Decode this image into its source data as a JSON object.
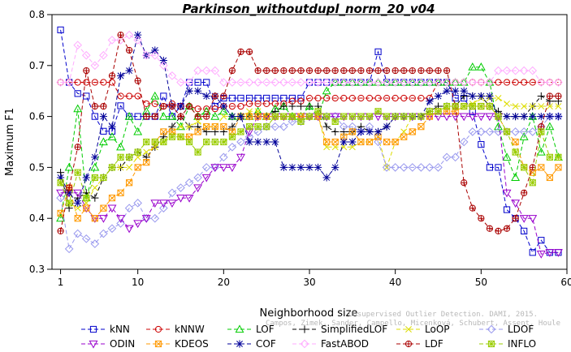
{
  "chart_data": {
    "type": "line",
    "title": "Parkinson_withoutdupl_norm_20_v04",
    "xlabel": "Neighborhood size",
    "ylabel": "Maximum F1",
    "xlim": [
      0,
      60
    ],
    "ylim": [
      0.3,
      0.8
    ],
    "xticks": [
      1,
      10,
      20,
      30,
      40,
      50,
      60
    ],
    "yticks": [
      0.3,
      0.4,
      0.5,
      0.6,
      0.7,
      0.8
    ],
    "grid": false,
    "legend_position": "bottom",
    "watermark": [
      "Unsupervised Outlier Detection. DAMI, 2015.",
      "Campos, Zimek, Sander, Campello, Micenková, Schubert, Assent, Houle"
    ],
    "x": [
      1,
      2,
      3,
      4,
      5,
      6,
      7,
      8,
      9,
      10,
      11,
      12,
      13,
      14,
      15,
      16,
      17,
      18,
      19,
      20,
      21,
      22,
      23,
      24,
      25,
      26,
      27,
      28,
      29,
      30,
      31,
      32,
      33,
      34,
      35,
      36,
      37,
      38,
      39,
      40,
      41,
      42,
      43,
      44,
      45,
      46,
      47,
      48,
      49,
      50,
      51,
      52,
      53,
      54,
      55,
      56,
      57,
      58,
      59
    ],
    "series": [
      {
        "name": "kNN",
        "color": "#0000cc",
        "marker": "square",
        "values": [
          0.77,
          0.667,
          0.645,
          0.64,
          0.6,
          0.571,
          0.571,
          0.621,
          0.6,
          0.6,
          0.6,
          0.6,
          0.64,
          0.6,
          0.62,
          0.667,
          0.667,
          0.667,
          0.62,
          0.636,
          0.636,
          0.636,
          0.636,
          0.636,
          0.636,
          0.636,
          0.636,
          0.636,
          0.636,
          0.667,
          0.667,
          0.667,
          0.667,
          0.667,
          0.667,
          0.667,
          0.667,
          0.727,
          0.667,
          0.667,
          0.667,
          0.667,
          0.667,
          0.667,
          0.667,
          0.667,
          0.636,
          0.636,
          0.609,
          0.545,
          0.5,
          0.5,
          0.417,
          0.4,
          0.375,
          0.333,
          0.357,
          0.333,
          0.333
        ]
      },
      {
        "name": "kNNW",
        "color": "#cc0000",
        "marker": "circle",
        "values": [
          0.667,
          0.667,
          0.667,
          0.667,
          0.667,
          0.667,
          0.667,
          0.64,
          0.64,
          0.64,
          0.625,
          0.625,
          0.62,
          0.625,
          0.62,
          0.62,
          0.615,
          0.615,
          0.615,
          0.62,
          0.62,
          0.62,
          0.625,
          0.625,
          0.625,
          0.625,
          0.625,
          0.63,
          0.63,
          0.636,
          0.636,
          0.636,
          0.636,
          0.636,
          0.636,
          0.636,
          0.636,
          0.636,
          0.636,
          0.636,
          0.636,
          0.636,
          0.636,
          0.636,
          0.667,
          0.667,
          0.667,
          0.667,
          0.667,
          0.667,
          0.667,
          0.667,
          0.667,
          0.667,
          0.667,
          0.667,
          0.667,
          0.667,
          0.667
        ]
      },
      {
        "name": "LOF",
        "color": "#00cc00",
        "marker": "triangle-up",
        "values": [
          0.4,
          0.5,
          0.615,
          0.44,
          0.5,
          0.55,
          0.56,
          0.54,
          0.6,
          0.57,
          0.61,
          0.64,
          0.6,
          0.6,
          0.58,
          0.62,
          0.6,
          0.61,
          0.6,
          0.61,
          0.6,
          0.6,
          0.6,
          0.61,
          0.6,
          0.615,
          0.62,
          0.6,
          0.6,
          0.62,
          0.6,
          0.65,
          0.667,
          0.667,
          0.667,
          0.667,
          0.667,
          0.667,
          0.667,
          0.667,
          0.667,
          0.667,
          0.667,
          0.667,
          0.667,
          0.667,
          0.667,
          0.667,
          0.697,
          0.697,
          0.667,
          0.58,
          0.52,
          0.48,
          0.56,
          0.6,
          0.53,
          0.58,
          0.52
        ]
      },
      {
        "name": "SimplifiedLOF",
        "color": "#000000",
        "marker": "plus",
        "values": [
          0.49,
          0.42,
          0.44,
          0.45,
          0.44,
          0.48,
          0.5,
          0.5,
          0.52,
          0.53,
          0.52,
          0.54,
          0.56,
          0.58,
          0.6,
          0.58,
          0.58,
          0.57,
          0.57,
          0.57,
          0.58,
          0.6,
          0.6,
          0.6,
          0.6,
          0.61,
          0.62,
          0.62,
          0.62,
          0.62,
          0.62,
          0.58,
          0.57,
          0.57,
          0.57,
          0.58,
          0.57,
          0.57,
          0.58,
          0.6,
          0.6,
          0.6,
          0.6,
          0.61,
          0.62,
          0.62,
          0.62,
          0.64,
          0.64,
          0.64,
          0.62,
          0.61,
          0.6,
          0.6,
          0.6,
          0.62,
          0.64,
          0.63,
          0.63
        ]
      },
      {
        "name": "LoOP",
        "color": "#dddd00",
        "marker": "x",
        "values": [
          0.47,
          0.43,
          0.42,
          0.43,
          0.46,
          0.48,
          0.5,
          0.5,
          0.5,
          0.52,
          0.53,
          0.54,
          0.55,
          0.57,
          0.58,
          0.58,
          0.59,
          0.58,
          0.58,
          0.6,
          0.6,
          0.6,
          0.61,
          0.61,
          0.6,
          0.6,
          0.6,
          0.6,
          0.6,
          0.6,
          0.6,
          0.54,
          0.54,
          0.54,
          0.54,
          0.55,
          0.55,
          0.56,
          0.5,
          0.55,
          0.57,
          0.6,
          0.6,
          0.6,
          0.61,
          0.62,
          0.62,
          0.62,
          0.625,
          0.636,
          0.636,
          0.636,
          0.625,
          0.62,
          0.62,
          0.62,
          0.62,
          0.62,
          0.62
        ]
      },
      {
        "name": "LDOF",
        "color": "#9999ee",
        "marker": "diamond",
        "values": [
          0.44,
          0.34,
          0.37,
          0.36,
          0.35,
          0.37,
          0.38,
          0.39,
          0.42,
          0.43,
          0.4,
          0.4,
          0.42,
          0.45,
          0.46,
          0.47,
          0.48,
          0.5,
          0.5,
          0.52,
          0.54,
          0.55,
          0.56,
          0.57,
          0.58,
          0.58,
          0.58,
          0.59,
          0.59,
          0.6,
          0.6,
          0.6,
          0.6,
          0.58,
          0.58,
          0.57,
          0.58,
          0.55,
          0.5,
          0.5,
          0.5,
          0.5,
          0.5,
          0.5,
          0.5,
          0.52,
          0.52,
          0.55,
          0.57,
          0.57,
          0.57,
          0.57,
          0.57,
          0.57,
          0.57,
          0.57,
          0.58,
          0.6,
          0.6
        ]
      },
      {
        "name": "ODIN",
        "color": "#9900cc",
        "marker": "triangle-down",
        "values": [
          0.45,
          0.45,
          0.45,
          0.42,
          0.4,
          0.4,
          0.42,
          0.4,
          0.38,
          0.39,
          0.4,
          0.43,
          0.43,
          0.43,
          0.44,
          0.44,
          0.46,
          0.48,
          0.5,
          0.5,
          0.5,
          0.52,
          0.57,
          0.6,
          0.6,
          0.6,
          0.6,
          0.6,
          0.6,
          0.6,
          0.6,
          0.6,
          0.6,
          0.6,
          0.6,
          0.6,
          0.6,
          0.6,
          0.6,
          0.6,
          0.6,
          0.6,
          0.6,
          0.6,
          0.6,
          0.6,
          0.6,
          0.6,
          0.6,
          0.6,
          0.6,
          0.6,
          0.45,
          0.43,
          0.4,
          0.4,
          0.33,
          0.333,
          0.333
        ]
      },
      {
        "name": "KDEOS",
        "color": "#ff9900",
        "marker": "square-x",
        "values": [
          0.41,
          0.46,
          0.4,
          0.42,
          0.4,
          0.42,
          0.44,
          0.45,
          0.47,
          0.5,
          0.51,
          0.55,
          0.57,
          0.57,
          0.56,
          0.56,
          0.57,
          0.58,
          0.58,
          0.58,
          0.57,
          0.6,
          0.6,
          0.6,
          0.6,
          0.6,
          0.6,
          0.6,
          0.6,
          0.6,
          0.6,
          0.55,
          0.55,
          0.56,
          0.57,
          0.55,
          0.55,
          0.56,
          0.55,
          0.55,
          0.56,
          0.57,
          0.58,
          0.6,
          0.61,
          0.61,
          0.61,
          0.62,
          0.62,
          0.62,
          0.62,
          0.6,
          0.57,
          0.55,
          0.5,
          0.49,
          0.5,
          0.48,
          0.5
        ]
      },
      {
        "name": "COF",
        "color": "#000099",
        "marker": "star",
        "values": [
          0.48,
          0.45,
          0.43,
          0.48,
          0.52,
          0.6,
          0.58,
          0.68,
          0.69,
          0.76,
          0.72,
          0.73,
          0.71,
          0.62,
          0.62,
          0.65,
          0.65,
          0.64,
          0.64,
          0.62,
          0.6,
          0.6,
          0.55,
          0.55,
          0.55,
          0.55,
          0.5,
          0.5,
          0.5,
          0.5,
          0.5,
          0.48,
          0.5,
          0.55,
          0.55,
          0.57,
          0.57,
          0.57,
          0.58,
          0.6,
          0.6,
          0.6,
          0.6,
          0.63,
          0.64,
          0.65,
          0.65,
          0.65,
          0.64,
          0.64,
          0.64,
          0.6,
          0.6,
          0.6,
          0.6,
          0.6,
          0.6,
          0.6,
          0.6
        ]
      },
      {
        "name": "FastABOD",
        "color": "#ffaaff",
        "marker": "diamond",
        "values": [
          0.667,
          0.667,
          0.74,
          0.72,
          0.7,
          0.72,
          0.75,
          0.75,
          0.76,
          0.75,
          0.72,
          0.72,
          0.7,
          0.68,
          0.667,
          0.667,
          0.69,
          0.69,
          0.69,
          0.667,
          0.667,
          0.667,
          0.667,
          0.667,
          0.667,
          0.667,
          0.667,
          0.667,
          0.667,
          0.667,
          0.667,
          0.667,
          0.667,
          0.667,
          0.667,
          0.667,
          0.667,
          0.667,
          0.667,
          0.667,
          0.667,
          0.667,
          0.667,
          0.667,
          0.667,
          0.667,
          0.667,
          0.667,
          0.667,
          0.667,
          0.667,
          0.69,
          0.69,
          0.69,
          0.69,
          0.69,
          0.667,
          0.667,
          0.667
        ]
      },
      {
        "name": "LDF",
        "color": "#aa0000",
        "marker": "circle-plus",
        "values": [
          0.375,
          0.46,
          0.54,
          0.69,
          0.62,
          0.62,
          0.68,
          0.76,
          0.73,
          0.67,
          0.6,
          0.6,
          0.62,
          0.62,
          0.6,
          0.62,
          0.6,
          0.6,
          0.64,
          0.64,
          0.69,
          0.727,
          0.727,
          0.69,
          0.69,
          0.69,
          0.69,
          0.69,
          0.69,
          0.69,
          0.69,
          0.69,
          0.69,
          0.69,
          0.69,
          0.69,
          0.69,
          0.69,
          0.69,
          0.69,
          0.69,
          0.69,
          0.69,
          0.69,
          0.69,
          0.69,
          0.62,
          0.47,
          0.42,
          0.4,
          0.38,
          0.375,
          0.38,
          0.4,
          0.45,
          0.5,
          0.58,
          0.64,
          0.64
        ]
      },
      {
        "name": "INFLO",
        "color": "#99cc00",
        "marker": "square-star",
        "values": [
          0.47,
          0.43,
          0.49,
          0.44,
          0.48,
          0.48,
          0.5,
          0.52,
          0.52,
          0.53,
          0.55,
          0.55,
          0.55,
          0.56,
          0.56,
          0.55,
          0.53,
          0.55,
          0.55,
          0.55,
          0.56,
          0.57,
          0.58,
          0.58,
          0.58,
          0.6,
          0.6,
          0.6,
          0.59,
          0.6,
          0.61,
          0.6,
          0.59,
          0.6,
          0.6,
          0.6,
          0.6,
          0.61,
          0.6,
          0.6,
          0.6,
          0.6,
          0.6,
          0.61,
          0.61,
          0.62,
          0.62,
          0.62,
          0.62,
          0.62,
          0.62,
          0.6,
          0.57,
          0.53,
          0.5,
          0.47,
          0.57,
          0.52,
          0.52
        ]
      }
    ]
  }
}
